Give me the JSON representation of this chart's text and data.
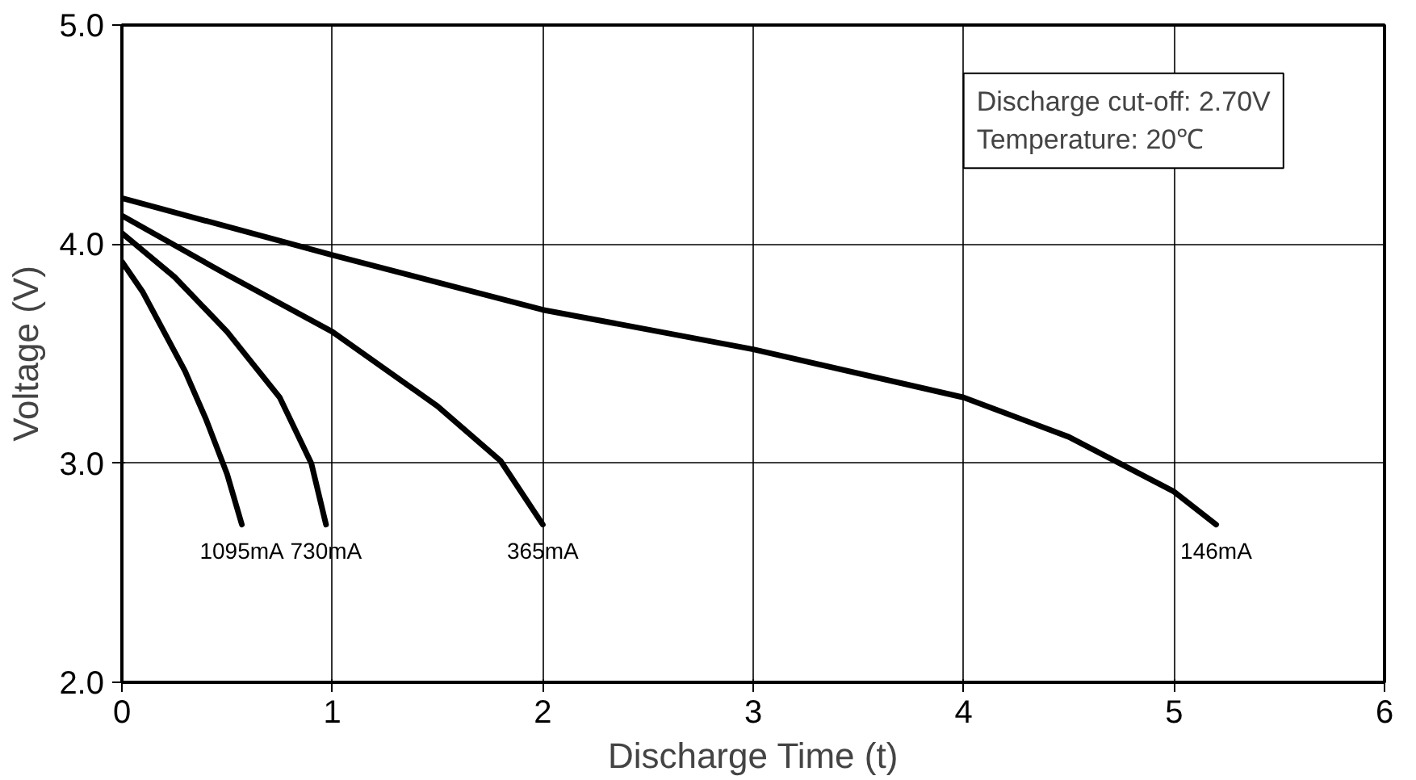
{
  "chart_data": {
    "type": "line",
    "xlabel": "Discharge Time (t)",
    "ylabel": "Voltage (V)",
    "xlim": [
      0,
      6
    ],
    "xticks": [
      0,
      1,
      2,
      3,
      4,
      5,
      6
    ],
    "ylim": [
      2,
      5
    ],
    "yticks": [
      {
        "value": 2,
        "label": "2.0"
      },
      {
        "value": 3,
        "label": "3.0"
      },
      {
        "value": 4,
        "label": "4.0"
      },
      {
        "value": 5,
        "label": "5.0"
      }
    ],
    "grid": true,
    "marker": "none",
    "line_style": "solid",
    "annotations": [
      "Discharge cut-off: 2.70V",
      "Temperature: 20℃"
    ],
    "series": [
      {
        "name": "1095mA",
        "color": "#000000",
        "x": [
          0,
          0.1,
          0.2,
          0.3,
          0.4,
          0.5,
          0.57
        ],
        "values": [
          3.92,
          3.78,
          3.6,
          3.42,
          3.2,
          2.95,
          2.72
        ]
      },
      {
        "name": "730mA",
        "color": "#000000",
        "x": [
          0,
          0.25,
          0.5,
          0.75,
          0.9,
          0.97
        ],
        "values": [
          4.05,
          3.85,
          3.6,
          3.3,
          3.0,
          2.72
        ]
      },
      {
        "name": "365mA",
        "color": "#000000",
        "x": [
          0,
          0.5,
          1,
          1.5,
          1.8,
          2
        ],
        "values": [
          4.13,
          3.86,
          3.6,
          3.26,
          3.01,
          2.72
        ]
      },
      {
        "name": "146mA",
        "color": "#000000",
        "x": [
          0,
          1,
          2,
          3,
          4,
          4.5,
          5,
          5.2
        ],
        "values": [
          4.21,
          3.95,
          3.7,
          3.52,
          3.3,
          3.12,
          2.87,
          2.72
        ]
      }
    ]
  }
}
